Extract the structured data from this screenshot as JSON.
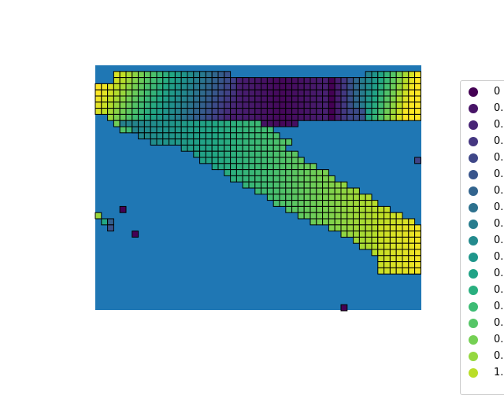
{
  "chart_data": {
    "type": "heatmap",
    "title": "",
    "xlabel": "",
    "ylabel": "",
    "grid": false,
    "axes_visible": false,
    "background_color": "#1f77b4",
    "cell_edge_color": "#000000",
    "colormap": "viridis",
    "legend": {
      "placement": "right",
      "entries": [
        {
          "label": "0",
          "color": "#440154"
        },
        {
          "label": "0.",
          "color": "#481467"
        },
        {
          "label": "0.",
          "color": "#482576"
        },
        {
          "label": "0.",
          "color": "#453781"
        },
        {
          "label": "0.",
          "color": "#3f4788"
        },
        {
          "label": "0.",
          "color": "#39558c"
        },
        {
          "label": "0.",
          "color": "#32648e"
        },
        {
          "label": "0.",
          "color": "#2d718e"
        },
        {
          "label": "0.",
          "color": "#287d8e"
        },
        {
          "label": "0.",
          "color": "#238a8d"
        },
        {
          "label": "0.",
          "color": "#1f968b"
        },
        {
          "label": "0.",
          "color": "#20a386"
        },
        {
          "label": "0.",
          "color": "#29af7f"
        },
        {
          "label": "0.",
          "color": "#3dbc74"
        },
        {
          "label": "0.",
          "color": "#56c667"
        },
        {
          "label": "0.",
          "color": "#75d054"
        },
        {
          "label": "0.",
          "color": "#95d840"
        },
        {
          "label": "1.",
          "color": "#bade28"
        }
      ]
    },
    "grid_cells": {
      "columns": 53,
      "rows": 40
    },
    "regions": [
      {
        "name": "upper-band",
        "value_start": 1.0,
        "value_end": 0.0
      },
      {
        "name": "diagonal-band",
        "value_start": 0.55,
        "value_end": 1.0
      }
    ],
    "isolated_cells": [
      {
        "col": 52,
        "row": 15,
        "value": 0.2
      },
      {
        "col": 4,
        "row": 23,
        "value": 0.0
      },
      {
        "col": 6,
        "row": 27,
        "value": 0.0
      },
      {
        "col": 0,
        "row": 24,
        "value": 0.85
      },
      {
        "col": 1,
        "row": 25,
        "value": 0.6
      },
      {
        "col": 2,
        "row": 25,
        "value": 0.3
      },
      {
        "col": 2,
        "row": 26,
        "value": 0.25
      },
      {
        "col": 40,
        "row": 39,
        "value": 0.0
      }
    ]
  }
}
